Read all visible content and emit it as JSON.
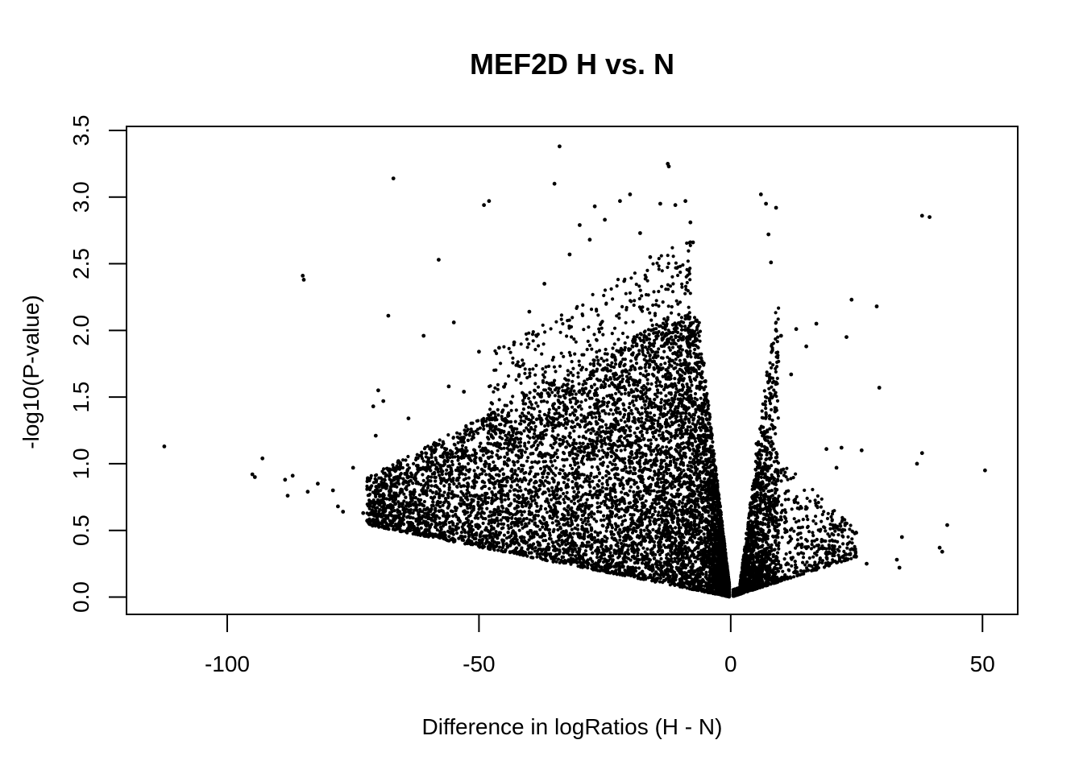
{
  "chart_data": {
    "type": "scatter",
    "title": "MEF2D H vs. N",
    "xlabel": "Difference in logRatios (H - N)",
    "ylabel": "-log10(P-value)",
    "xlim": [
      -120,
      57
    ],
    "ylim": [
      -0.13,
      3.53
    ],
    "xticks": [
      -100,
      -50,
      0,
      50
    ],
    "yticks": [
      0.0,
      0.5,
      1.0,
      1.5,
      2.0,
      2.5,
      3.0,
      3.5
    ],
    "xtick_labels": [
      "-100",
      "-50",
      "0",
      "50"
    ],
    "ytick_labels": [
      "0.0",
      "0.5",
      "1.0",
      "1.5",
      "2.0",
      "2.5",
      "3.0",
      "3.5"
    ],
    "grid": false,
    "legend": false,
    "point_color": "#000000",
    "points_note_sampled": false,
    "series": [
      {
        "values": [
          [
            -112.5,
            1.13
          ],
          [
            -95,
            0.92
          ],
          [
            -94.5,
            0.9
          ],
          [
            -93,
            1.04
          ],
          [
            -88.5,
            0.88
          ],
          [
            -88,
            0.76
          ],
          [
            -87,
            0.91
          ],
          [
            -85,
            2.41
          ],
          [
            -84.8,
            2.38
          ],
          [
            -84,
            0.79
          ],
          [
            -82,
            0.85
          ],
          [
            -79,
            0.8
          ],
          [
            -78,
            0.68
          ],
          [
            -77,
            0.64
          ],
          [
            -75,
            0.97
          ],
          [
            -73,
            0.63
          ],
          [
            -72,
            0.69
          ],
          [
            -71,
            1.43
          ],
          [
            -70.5,
            1.21
          ],
          [
            -70,
            1.55
          ],
          [
            -69,
            1.47
          ],
          [
            -68,
            2.11
          ],
          [
            -67,
            3.14
          ],
          [
            -66,
            1.02
          ],
          [
            -64,
            1.34
          ],
          [
            -61,
            1.96
          ],
          [
            -60,
            1.04
          ],
          [
            -58,
            2.53
          ],
          [
            -56,
            1.58
          ],
          [
            -55,
            2.06
          ],
          [
            -53,
            1.54
          ],
          [
            -50,
            1.84
          ],
          [
            -49,
            2.94
          ],
          [
            -48,
            2.97
          ],
          [
            -46,
            1.87
          ],
          [
            -43,
            1.91
          ],
          [
            -40,
            2.14
          ],
          [
            -37,
            2.35
          ],
          [
            -35,
            3.1
          ],
          [
            -34,
            3.38
          ],
          [
            -32,
            2.57
          ],
          [
            -30,
            2.79
          ],
          [
            -28,
            2.68
          ],
          [
            -27,
            2.93
          ],
          [
            -25,
            2.83
          ],
          [
            -22,
            2.97
          ],
          [
            -20,
            3.02
          ],
          [
            -18,
            2.73
          ],
          [
            -16,
            2.55
          ],
          [
            -14,
            2.95
          ],
          [
            -12.5,
            3.25
          ],
          [
            -12.3,
            3.23
          ],
          [
            -11,
            2.94
          ],
          [
            -9,
            2.97
          ],
          [
            -8,
            2.81
          ],
          [
            -7.5,
            2.66
          ],
          [
            6,
            3.02
          ],
          [
            7,
            2.95
          ],
          [
            7.5,
            2.72
          ],
          [
            8,
            2.51
          ],
          [
            9,
            2.92
          ],
          [
            10,
            1.96
          ],
          [
            12,
            1.67
          ],
          [
            13,
            2.01
          ],
          [
            15,
            1.88
          ],
          [
            17,
            2.05
          ],
          [
            19,
            1.11
          ],
          [
            21,
            0.97
          ],
          [
            22,
            1.12
          ],
          [
            23,
            1.95
          ],
          [
            24,
            2.23
          ],
          [
            26,
            1.1
          ],
          [
            27,
            0.25
          ],
          [
            29,
            2.18
          ],
          [
            29.5,
            1.57
          ],
          [
            33,
            0.28
          ],
          [
            33.5,
            0.22
          ],
          [
            34,
            0.45
          ],
          [
            37,
            1.0
          ],
          [
            38,
            2.86
          ],
          [
            38,
            1.08
          ],
          [
            39.5,
            2.85
          ],
          [
            41.5,
            0.37
          ],
          [
            42,
            0.34
          ],
          [
            43,
            0.54
          ],
          [
            50.5,
            0.95
          ]
        ]
      }
    ]
  }
}
